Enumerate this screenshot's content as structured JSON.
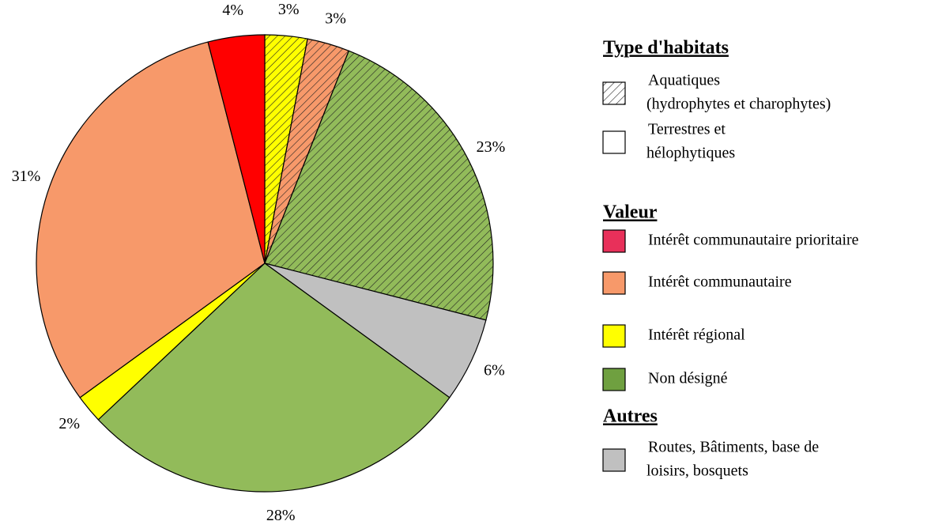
{
  "chart_data": {
    "type": "pie",
    "values": [
      3,
      3,
      23,
      6,
      28,
      2,
      31,
      4
    ],
    "value_labels": [
      "3%",
      "3%",
      "23%",
      "6%",
      "28%",
      "2%",
      "31%",
      "4%"
    ],
    "colors": [
      "#ffff00",
      "#f7996a",
      "#92bb5a",
      "#c0c0c0",
      "#92bb5a",
      "#ffff00",
      "#f7996a",
      "#ff0000"
    ],
    "hatched": [
      true,
      true,
      true,
      false,
      false,
      false,
      false,
      false
    ],
    "legend": [
      {
        "title": "Type d'habitats",
        "items": [
          {
            "lines": [
              "Aquatiques",
              "(hydrophytes et  charophytes)"
            ],
            "color": "#ffffff",
            "hatched": true
          },
          {
            "lines": [
              "Terrestres et",
              "hélophytiques"
            ],
            "color": "#ffffff",
            "hatched": false
          }
        ]
      },
      {
        "title": "Valeur",
        "items": [
          {
            "lines": [
              "Intérêt communautaire prioritaire"
            ],
            "color": "#e8305a",
            "hatched": false
          },
          {
            "lines": [
              "Intérêt communautaire"
            ],
            "color": "#f7996a",
            "hatched": false
          },
          {
            "lines": [
              "Intérêt régional"
            ],
            "color": "#ffff00",
            "hatched": false
          },
          {
            "lines": [
              "Non désigné"
            ],
            "color": "#6fa040",
            "hatched": false
          }
        ]
      },
      {
        "title": "Autres",
        "items": [
          {
            "lines": [
              "Routes, Bâtiments, base de",
              "loisirs, bosquets"
            ],
            "color": "#c0c0c0",
            "hatched": false
          }
        ]
      }
    ]
  }
}
